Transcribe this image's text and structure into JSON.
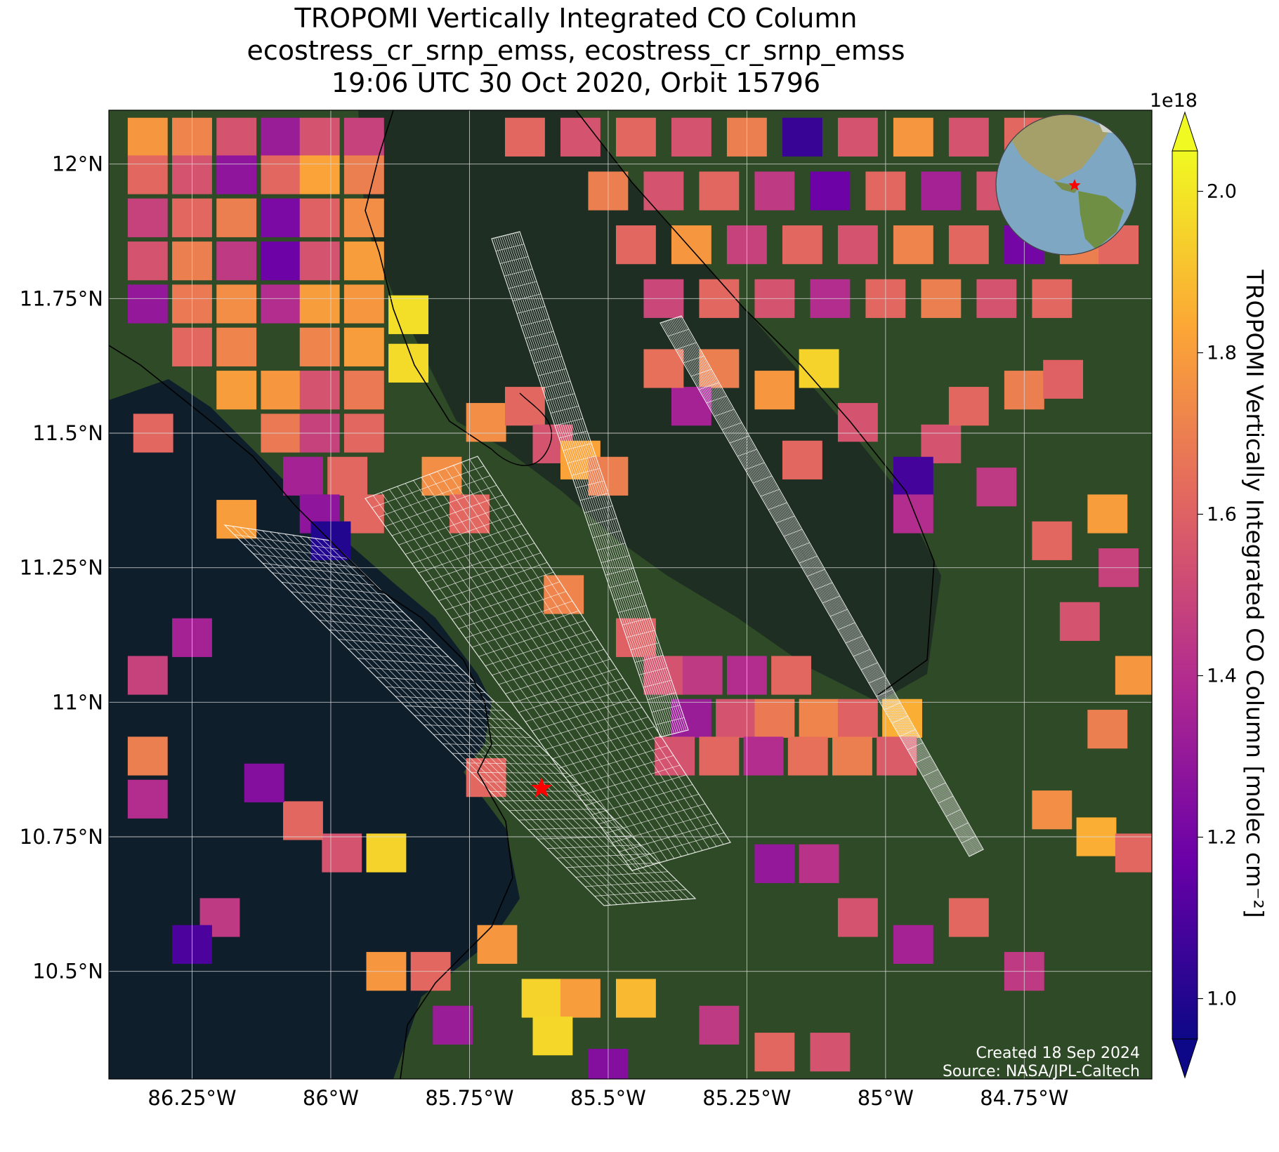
{
  "title": {
    "line1": "TROPOMI Vertically Integrated CO Column",
    "line2": "ecostress_cr_srnp_emss, ecostress_cr_srnp_emss",
    "line3": "19:06 UTC 30 Oct 2020, Orbit 15796"
  },
  "axes": {
    "lon_ticks": [
      -86.25,
      -86.0,
      -85.75,
      -85.5,
      -85.25,
      -85.0,
      -84.75
    ],
    "lon_labels": [
      "86.25°W",
      "86°W",
      "85.75°W",
      "85.5°W",
      "85.25°W",
      "85°W",
      "84.75°W"
    ],
    "lat_ticks": [
      12.0,
      11.75,
      11.5,
      11.25,
      11.0,
      10.75,
      10.5
    ],
    "lat_labels": [
      "12°N",
      "11.75°N",
      "11.5°N",
      "11.25°N",
      "11°N",
      "10.75°N",
      "10.5°N"
    ],
    "lon_range": [
      -86.4,
      -84.52
    ],
    "lat_range": [
      10.3,
      12.1
    ]
  },
  "colorbar": {
    "label": "TROPOMI Vertically Integrated CO Column [molec cm⁻²]",
    "exponent": "1e18",
    "ticks": [
      1.0,
      1.2,
      1.4,
      1.6,
      1.8,
      2.0
    ],
    "tick_labels": [
      "1.0",
      "1.2",
      "1.4",
      "1.6",
      "1.8",
      "2.0"
    ],
    "range": [
      0.95,
      2.05
    ],
    "colormap": "plasma",
    "colors": [
      "#0d0887",
      "#6a00a8",
      "#b12a90",
      "#e16462",
      "#fca636",
      "#f0f921"
    ]
  },
  "marker": {
    "name": "site",
    "lon": -85.62,
    "lat": 10.84,
    "color": "#ff0000"
  },
  "inset": {
    "marker_color": "#ff0000"
  },
  "credits": {
    "created": "Created 18 Sep 2024",
    "source": "Source: NASA/JPL-Caltech"
  },
  "colors": {
    "ocean": "#0f1e2b",
    "land": "#2f4a26",
    "lake": "#1f2e22",
    "grid": "#d8d8d8",
    "swath": "#ffffff"
  },
  "chart_data": {
    "type": "heatmap",
    "title": "TROPOMI Vertically Integrated CO Column",
    "value_units": "1e18 molec cm⁻²",
    "xlabel": "",
    "ylabel": "",
    "xlim": [
      -86.4,
      -84.52
    ],
    "ylim": [
      10.3,
      12.1
    ],
    "grid": true,
    "cells": [
      {
        "lon": -86.33,
        "lat": 12.05,
        "v": 1.78
      },
      {
        "lon": -86.25,
        "lat": 12.05,
        "v": 1.72
      },
      {
        "lon": -86.17,
        "lat": 12.05,
        "v": 1.55
      },
      {
        "lon": -86.09,
        "lat": 12.05,
        "v": 1.32
      },
      {
        "lon": -86.02,
        "lat": 12.05,
        "v": 1.55
      },
      {
        "lon": -85.94,
        "lat": 12.05,
        "v": 1.48
      },
      {
        "lon": -86.33,
        "lat": 11.98,
        "v": 1.62
      },
      {
        "lon": -86.25,
        "lat": 11.98,
        "v": 1.55
      },
      {
        "lon": -86.17,
        "lat": 11.98,
        "v": 1.28
      },
      {
        "lon": -86.09,
        "lat": 11.98,
        "v": 1.62
      },
      {
        "lon": -86.02,
        "lat": 11.98,
        "v": 1.82
      },
      {
        "lon": -85.94,
        "lat": 11.98,
        "v": 1.7
      },
      {
        "lon": -86.33,
        "lat": 11.9,
        "v": 1.48
      },
      {
        "lon": -86.25,
        "lat": 11.9,
        "v": 1.62
      },
      {
        "lon": -86.17,
        "lat": 11.9,
        "v": 1.7
      },
      {
        "lon": -86.09,
        "lat": 11.9,
        "v": 1.22
      },
      {
        "lon": -86.02,
        "lat": 11.9,
        "v": 1.6
      },
      {
        "lon": -85.94,
        "lat": 11.9,
        "v": 1.75
      },
      {
        "lon": -86.33,
        "lat": 11.82,
        "v": 1.55
      },
      {
        "lon": -86.25,
        "lat": 11.82,
        "v": 1.7
      },
      {
        "lon": -86.17,
        "lat": 11.82,
        "v": 1.45
      },
      {
        "lon": -86.09,
        "lat": 11.82,
        "v": 1.18
      },
      {
        "lon": -86.02,
        "lat": 11.82,
        "v": 1.55
      },
      {
        "lon": -85.94,
        "lat": 11.82,
        "v": 1.8
      },
      {
        "lon": -86.33,
        "lat": 11.74,
        "v": 1.3
      },
      {
        "lon": -86.25,
        "lat": 11.74,
        "v": 1.68
      },
      {
        "lon": -86.17,
        "lat": 11.74,
        "v": 1.75
      },
      {
        "lon": -86.09,
        "lat": 11.74,
        "v": 1.4
      },
      {
        "lon": -86.02,
        "lat": 11.74,
        "v": 1.8
      },
      {
        "lon": -85.94,
        "lat": 11.74,
        "v": 1.78
      },
      {
        "lon": -85.86,
        "lat": 11.72,
        "v": 1.98
      },
      {
        "lon": -86.25,
        "lat": 11.66,
        "v": 1.62
      },
      {
        "lon": -86.17,
        "lat": 11.66,
        "v": 1.72
      },
      {
        "lon": -86.02,
        "lat": 11.66,
        "v": 1.72
      },
      {
        "lon": -85.94,
        "lat": 11.66,
        "v": 1.8
      },
      {
        "lon": -85.86,
        "lat": 11.63,
        "v": 1.97
      },
      {
        "lon": -86.17,
        "lat": 11.58,
        "v": 1.8
      },
      {
        "lon": -86.09,
        "lat": 11.58,
        "v": 1.78
      },
      {
        "lon": -86.02,
        "lat": 11.58,
        "v": 1.55
      },
      {
        "lon": -85.94,
        "lat": 11.58,
        "v": 1.68
      },
      {
        "lon": -86.32,
        "lat": 11.5,
        "v": 1.62
      },
      {
        "lon": -86.09,
        "lat": 11.5,
        "v": 1.68
      },
      {
        "lon": -86.02,
        "lat": 11.5,
        "v": 1.48
      },
      {
        "lon": -85.94,
        "lat": 11.5,
        "v": 1.62
      },
      {
        "lon": -86.05,
        "lat": 11.42,
        "v": 1.35
      },
      {
        "lon": -85.97,
        "lat": 11.42,
        "v": 1.62
      },
      {
        "lon": -86.02,
        "lat": 11.35,
        "v": 1.28
      },
      {
        "lon": -85.94,
        "lat": 11.35,
        "v": 1.62
      },
      {
        "lon": -86.17,
        "lat": 11.34,
        "v": 1.8
      },
      {
        "lon": -86.0,
        "lat": 11.3,
        "v": 1.0
      },
      {
        "lon": -85.8,
        "lat": 11.42,
        "v": 1.75
      },
      {
        "lon": -85.75,
        "lat": 11.35,
        "v": 1.62
      },
      {
        "lon": -85.72,
        "lat": 11.52,
        "v": 1.75
      },
      {
        "lon": -85.65,
        "lat": 11.55,
        "v": 1.62
      },
      {
        "lon": -85.6,
        "lat": 11.48,
        "v": 1.55
      },
      {
        "lon": -85.55,
        "lat": 11.45,
        "v": 1.82
      },
      {
        "lon": -85.5,
        "lat": 11.42,
        "v": 1.7
      },
      {
        "lon": -85.58,
        "lat": 11.2,
        "v": 1.72
      },
      {
        "lon": -85.45,
        "lat": 11.12,
        "v": 1.6
      },
      {
        "lon": -85.4,
        "lat": 11.05,
        "v": 1.55
      },
      {
        "lon": -85.33,
        "lat": 11.05,
        "v": 1.45
      },
      {
        "lon": -85.25,
        "lat": 11.05,
        "v": 1.4
      },
      {
        "lon": -85.17,
        "lat": 11.05,
        "v": 1.62
      },
      {
        "lon": -85.35,
        "lat": 10.97,
        "v": 1.32
      },
      {
        "lon": -85.27,
        "lat": 10.97,
        "v": 1.55
      },
      {
        "lon": -85.2,
        "lat": 10.97,
        "v": 1.68
      },
      {
        "lon": -85.12,
        "lat": 10.97,
        "v": 1.72
      },
      {
        "lon": -85.05,
        "lat": 10.97,
        "v": 1.6
      },
      {
        "lon": -84.97,
        "lat": 10.97,
        "v": 1.85
      },
      {
        "lon": -85.38,
        "lat": 10.9,
        "v": 1.55
      },
      {
        "lon": -85.3,
        "lat": 10.9,
        "v": 1.62
      },
      {
        "lon": -85.22,
        "lat": 10.9,
        "v": 1.4
      },
      {
        "lon": -85.14,
        "lat": 10.9,
        "v": 1.65
      },
      {
        "lon": -85.06,
        "lat": 10.9,
        "v": 1.7
      },
      {
        "lon": -84.98,
        "lat": 10.9,
        "v": 1.58
      },
      {
        "lon": -85.72,
        "lat": 10.86,
        "v": 1.62
      },
      {
        "lon": -85.9,
        "lat": 10.72,
        "v": 1.95
      },
      {
        "lon": -85.98,
        "lat": 10.72,
        "v": 1.55
      },
      {
        "lon": -86.05,
        "lat": 10.78,
        "v": 1.62
      },
      {
        "lon": -86.12,
        "lat": 10.85,
        "v": 1.25
      },
      {
        "lon": -86.2,
        "lat": 10.6,
        "v": 1.45
      },
      {
        "lon": -86.25,
        "lat": 10.55,
        "v": 1.1
      },
      {
        "lon": -86.33,
        "lat": 11.05,
        "v": 1.48
      },
      {
        "lon": -86.25,
        "lat": 11.12,
        "v": 1.35
      },
      {
        "lon": -86.33,
        "lat": 10.9,
        "v": 1.7
      },
      {
        "lon": -86.33,
        "lat": 10.82,
        "v": 1.4
      },
      {
        "lon": -85.9,
        "lat": 10.5,
        "v": 1.78
      },
      {
        "lon": -85.82,
        "lat": 10.5,
        "v": 1.62
      },
      {
        "lon": -85.7,
        "lat": 10.55,
        "v": 1.78
      },
      {
        "lon": -85.62,
        "lat": 10.45,
        "v": 1.95
      },
      {
        "lon": -85.55,
        "lat": 10.45,
        "v": 1.8
      },
      {
        "lon": -85.45,
        "lat": 10.45,
        "v": 1.88
      },
      {
        "lon": -85.6,
        "lat": 10.38,
        "v": 1.96
      },
      {
        "lon": -85.5,
        "lat": 10.32,
        "v": 1.25
      },
      {
        "lon": -85.78,
        "lat": 10.4,
        "v": 1.32
      },
      {
        "lon": -85.3,
        "lat": 10.4,
        "v": 1.45
      },
      {
        "lon": -85.2,
        "lat": 10.35,
        "v": 1.62
      },
      {
        "lon": -85.1,
        "lat": 10.35,
        "v": 1.55
      },
      {
        "lon": -85.2,
        "lat": 10.7,
        "v": 1.3
      },
      {
        "lon": -85.12,
        "lat": 10.7,
        "v": 1.42
      },
      {
        "lon": -85.05,
        "lat": 10.6,
        "v": 1.55
      },
      {
        "lon": -84.95,
        "lat": 10.55,
        "v": 1.35
      },
      {
        "lon": -84.85,
        "lat": 10.6,
        "v": 1.62
      },
      {
        "lon": -84.75,
        "lat": 10.5,
        "v": 1.45
      },
      {
        "lon": -84.7,
        "lat": 10.8,
        "v": 1.75
      },
      {
        "lon": -84.62,
        "lat": 10.75,
        "v": 1.85
      },
      {
        "lon": -84.55,
        "lat": 10.72,
        "v": 1.62
      },
      {
        "lon": -84.6,
        "lat": 10.95,
        "v": 1.7
      },
      {
        "lon": -84.55,
        "lat": 11.05,
        "v": 1.78
      },
      {
        "lon": -84.65,
        "lat": 11.15,
        "v": 1.55
      },
      {
        "lon": -84.58,
        "lat": 11.25,
        "v": 1.48
      },
      {
        "lon": -84.7,
        "lat": 11.3,
        "v": 1.62
      },
      {
        "lon": -84.6,
        "lat": 11.35,
        "v": 1.8
      },
      {
        "lon": -84.8,
        "lat": 11.4,
        "v": 1.45
      },
      {
        "lon": -84.9,
        "lat": 11.48,
        "v": 1.55
      },
      {
        "lon": -84.95,
        "lat": 11.42,
        "v": 1.08
      },
      {
        "lon": -84.95,
        "lat": 11.35,
        "v": 1.4
      },
      {
        "lon": -84.85,
        "lat": 11.55,
        "v": 1.62
      },
      {
        "lon": -84.75,
        "lat": 11.58,
        "v": 1.7
      },
      {
        "lon": -84.68,
        "lat": 11.6,
        "v": 1.6
      },
      {
        "lon": -85.15,
        "lat": 11.45,
        "v": 1.62
      },
      {
        "lon": -85.05,
        "lat": 11.52,
        "v": 1.55
      },
      {
        "lon": -85.12,
        "lat": 11.62,
        "v": 1.95
      },
      {
        "lon": -85.2,
        "lat": 11.58,
        "v": 1.78
      },
      {
        "lon": -85.3,
        "lat": 11.62,
        "v": 1.7
      },
      {
        "lon": -85.35,
        "lat": 11.55,
        "v": 1.35
      },
      {
        "lon": -85.4,
        "lat": 11.62,
        "v": 1.65
      },
      {
        "lon": -85.45,
        "lat": 12.05,
        "v": 1.62
      },
      {
        "lon": -85.35,
        "lat": 12.05,
        "v": 1.55
      },
      {
        "lon": -85.25,
        "lat": 12.05,
        "v": 1.7
      },
      {
        "lon": -85.15,
        "lat": 12.05,
        "v": 1.05
      },
      {
        "lon": -85.05,
        "lat": 12.05,
        "v": 1.55
      },
      {
        "lon": -84.95,
        "lat": 12.05,
        "v": 1.78
      },
      {
        "lon": -84.85,
        "lat": 12.05,
        "v": 1.55
      },
      {
        "lon": -84.75,
        "lat": 12.05,
        "v": 1.62
      },
      {
        "lon": -85.65,
        "lat": 12.05,
        "v": 1.62
      },
      {
        "lon": -85.55,
        "lat": 12.05,
        "v": 1.55
      },
      {
        "lon": -85.5,
        "lat": 11.95,
        "v": 1.7
      },
      {
        "lon": -85.4,
        "lat": 11.95,
        "v": 1.55
      },
      {
        "lon": -85.3,
        "lat": 11.95,
        "v": 1.62
      },
      {
        "lon": -85.2,
        "lat": 11.95,
        "v": 1.45
      },
      {
        "lon": -85.1,
        "lat": 11.95,
        "v": 1.18
      },
      {
        "lon": -85.0,
        "lat": 11.95,
        "v": 1.62
      },
      {
        "lon": -84.9,
        "lat": 11.95,
        "v": 1.35
      },
      {
        "lon": -84.8,
        "lat": 11.95,
        "v": 1.55
      },
      {
        "lon": -85.45,
        "lat": 11.85,
        "v": 1.62
      },
      {
        "lon": -85.35,
        "lat": 11.85,
        "v": 1.78
      },
      {
        "lon": -85.25,
        "lat": 11.85,
        "v": 1.48
      },
      {
        "lon": -85.15,
        "lat": 11.85,
        "v": 1.62
      },
      {
        "lon": -85.05,
        "lat": 11.85,
        "v": 1.55
      },
      {
        "lon": -84.95,
        "lat": 11.85,
        "v": 1.72
      },
      {
        "lon": -84.85,
        "lat": 11.85,
        "v": 1.62
      },
      {
        "lon": -84.75,
        "lat": 11.85,
        "v": 1.2
      },
      {
        "lon": -84.65,
        "lat": 11.85,
        "v": 1.7
      },
      {
        "lon": -84.58,
        "lat": 11.85,
        "v": 1.62
      },
      {
        "lon": -85.4,
        "lat": 11.75,
        "v": 1.5
      },
      {
        "lon": -85.3,
        "lat": 11.75,
        "v": 1.62
      },
      {
        "lon": -85.2,
        "lat": 11.75,
        "v": 1.55
      },
      {
        "lon": -85.1,
        "lat": 11.75,
        "v": 1.4
      },
      {
        "lon": -85.0,
        "lat": 11.75,
        "v": 1.62
      },
      {
        "lon": -84.9,
        "lat": 11.75,
        "v": 1.7
      },
      {
        "lon": -84.8,
        "lat": 11.75,
        "v": 1.55
      },
      {
        "lon": -84.7,
        "lat": 11.75,
        "v": 1.62
      }
    ]
  }
}
